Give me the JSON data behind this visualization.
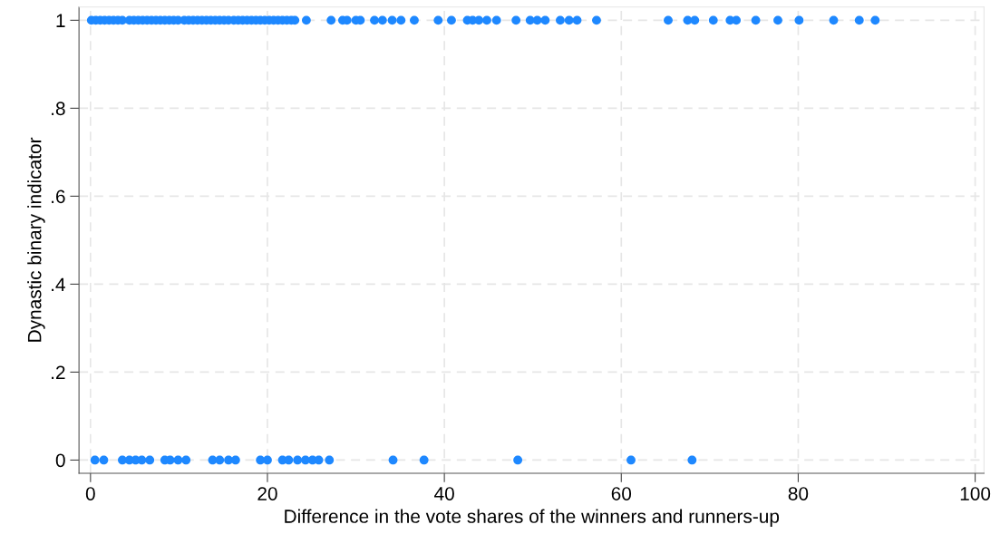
{
  "chart_data": {
    "type": "scatter",
    "xlabel": "Difference in the vote shares of the winners and runners-up",
    "ylabel": "Dynastic binary indicator",
    "series": [
      {
        "color": "#1e88ff",
        "x": [
          0.1,
          0.6,
          1.1,
          1.6,
          2.1,
          2.6,
          3.1,
          3.6,
          4.4,
          4.9,
          5.4,
          5.9,
          6.4,
          6.9,
          7.4,
          7.9,
          8.4,
          8.9,
          9.4,
          9.9,
          10.6,
          11.1,
          11.6,
          12.1,
          12.6,
          13.1,
          13.6,
          14.1,
          14.6,
          15.1,
          15.6,
          16.2,
          16.7,
          17.2,
          17.7,
          18.2,
          18.7,
          19.2,
          19.7,
          20.2,
          20.7,
          21.2,
          21.7,
          22.2,
          22.7,
          23.1,
          24.4,
          27.2,
          28.5,
          29.0,
          30.0,
          30.5,
          32.1,
          33.0,
          34.1,
          35.1,
          36.6,
          39.3,
          40.8,
          42.6,
          43.2,
          43.9,
          44.8,
          45.9,
          48.1,
          49.7,
          50.5,
          51.4,
          53.1,
          54.1,
          55.0,
          57.2,
          65.3,
          67.5,
          68.3,
          70.4,
          72.3,
          73.0,
          75.2,
          77.7,
          80.1,
          84.0,
          86.9,
          88.7,
          0.5,
          1.5,
          3.6,
          4.4,
          5.1,
          5.8,
          6.7,
          8.4,
          9.0,
          9.9,
          10.8,
          13.8,
          14.6,
          15.6,
          16.4,
          19.2,
          20.0,
          21.7,
          22.4,
          23.4,
          24.3,
          25.1,
          25.8,
          27.0,
          34.2,
          37.7,
          48.3,
          61.1,
          68.0
        ],
        "values": [
          1,
          1,
          1,
          1,
          1,
          1,
          1,
          1,
          1,
          1,
          1,
          1,
          1,
          1,
          1,
          1,
          1,
          1,
          1,
          1,
          1,
          1,
          1,
          1,
          1,
          1,
          1,
          1,
          1,
          1,
          1,
          1,
          1,
          1,
          1,
          1,
          1,
          1,
          1,
          1,
          1,
          1,
          1,
          1,
          1,
          1,
          1,
          1,
          1,
          1,
          1,
          1,
          1,
          1,
          1,
          1,
          1,
          1,
          1,
          1,
          1,
          1,
          1,
          1,
          1,
          1,
          1,
          1,
          1,
          1,
          1,
          1,
          1,
          1,
          1,
          1,
          1,
          1,
          1,
          1,
          1,
          1,
          1,
          1,
          0,
          0,
          0,
          0,
          0,
          0,
          0,
          0,
          0,
          0,
          0,
          0,
          0,
          0,
          0,
          0,
          0,
          0,
          0,
          0,
          0,
          0,
          0,
          0,
          0,
          0,
          0,
          0,
          0
        ]
      }
    ],
    "xlim": [
      -1.3,
      101
    ],
    "xticks": [
      0,
      20,
      40,
      60,
      80,
      100
    ],
    "ylim": [
      -0.03,
      1.03
    ],
    "yticks": [
      {
        "value": 0,
        "label": "0"
      },
      {
        "value": 0.2,
        "label": ".2"
      },
      {
        "value": 0.4,
        "label": ".4"
      },
      {
        "value": 0.6,
        "label": ".6"
      },
      {
        "value": 0.8,
        "label": ".8"
      },
      {
        "value": 1,
        "label": "1"
      }
    ],
    "grid": true,
    "marker": "circle"
  }
}
